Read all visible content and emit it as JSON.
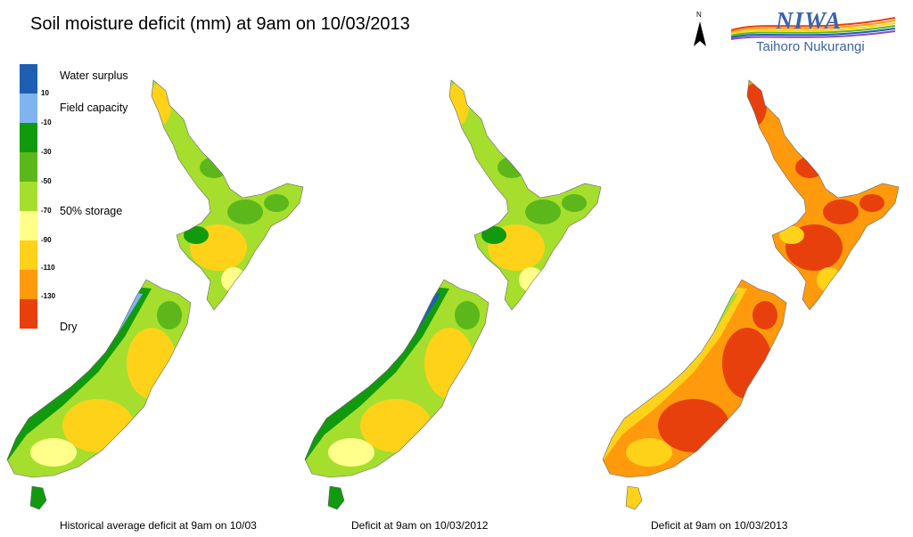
{
  "title": "Soil moisture deficit (mm) at  9am on 10/03/2013",
  "north_label": "N",
  "logo": {
    "wordmark": "NIWA",
    "subtitle": "Taihoro Nukurangi"
  },
  "legend": {
    "swatches": [
      {
        "color": "#1f5fb3"
      },
      {
        "color": "#7fb4f0"
      },
      {
        "color": "#129a0f"
      },
      {
        "color": "#5cb81a"
      },
      {
        "color": "#a6de2d"
      },
      {
        "color": "#ffff8a"
      },
      {
        "color": "#ffd21a"
      },
      {
        "color": "#ff9a0d"
      },
      {
        "color": "#e8400c"
      }
    ],
    "ticks": [
      "10",
      "-10",
      "-30",
      "-50",
      "-70",
      "-90",
      "-110",
      "-130"
    ],
    "labels": {
      "surplus": "Water surplus",
      "field_capacity": "Field capacity",
      "storage": "50% storage",
      "dry": "Dry"
    }
  },
  "maps": [
    {
      "caption": "Historical average deficit at 9am on 10/03",
      "colors": {
        "base": "#a6de2d",
        "coast": "#7fb4f0",
        "ring": "#129a0f",
        "mid": "#5cb81a",
        "dry": "#ffd21a",
        "pale": "#ffff8a"
      }
    },
    {
      "caption": "Deficit at 9am on 10/03/2012",
      "colors": {
        "base": "#a6de2d",
        "coast": "#1f5fb3",
        "ring": "#129a0f",
        "mid": "#5cb81a",
        "dry": "#ffd21a",
        "pale": "#ffff8a"
      }
    },
    {
      "caption": "Deficit at 9am on 10/03/2013",
      "colors": {
        "base": "#ff9a0d",
        "coast": "#a6de2d",
        "ring": "#ffd21a",
        "mid": "#e8400c",
        "dry": "#e8400c",
        "pale": "#ffd21a"
      }
    }
  ]
}
